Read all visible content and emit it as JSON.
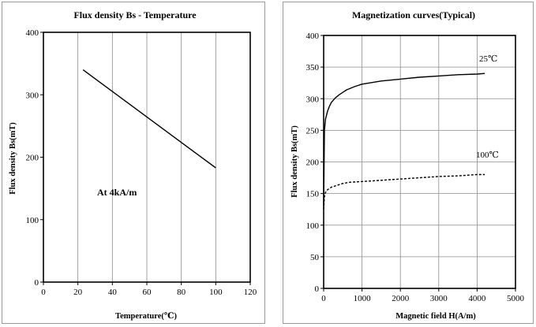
{
  "chart_data": [
    {
      "type": "line",
      "title": "Flux density Bs - Temperature",
      "xlabel": "Temperature(℃)",
      "ylabel": "Flux density Bs(mT)",
      "xlim": [
        0,
        120
      ],
      "ylim": [
        0,
        400
      ],
      "xticks": [
        0,
        20,
        40,
        60,
        80,
        100,
        120
      ],
      "yticks": [
        0,
        100,
        200,
        300,
        400
      ],
      "grid": "vertical",
      "annotation": "At 4kA/m",
      "series": [
        {
          "name": "Bs",
          "style": "solid",
          "x": [
            23,
            100
          ],
          "y": [
            340,
            183
          ]
        }
      ]
    },
    {
      "type": "line",
      "title": "Magnetization curves(Typical)",
      "xlabel": "Magnetic field H(A/m)",
      "ylabel": "Flux density Bs(mT)",
      "xlim": [
        0,
        5000
      ],
      "ylim": [
        0,
        400
      ],
      "xticks": [
        0,
        1000,
        2000,
        3000,
        4000,
        5000
      ],
      "yticks": [
        0,
        50,
        100,
        150,
        200,
        250,
        300,
        350,
        400
      ],
      "grid": "both",
      "series": [
        {
          "name": "25℃",
          "style": "solid",
          "x": [
            0,
            20,
            50,
            100,
            150,
            200,
            300,
            400,
            500,
            600,
            800,
            1000,
            1500,
            2000,
            2500,
            3000,
            3500,
            4000,
            4200
          ],
          "y": [
            130,
            250,
            268,
            280,
            288,
            294,
            301,
            306,
            310,
            314,
            319,
            323,
            328,
            331,
            334,
            336,
            338,
            339,
            340
          ]
        },
        {
          "name": "100℃",
          "style": "dashed",
          "x": [
            0,
            20,
            50,
            100,
            200,
            300,
            500,
            700,
            1000,
            1500,
            2000,
            2500,
            3000,
            3500,
            4000,
            4200
          ],
          "y": [
            125,
            145,
            152,
            156,
            160,
            162,
            166,
            168,
            169,
            171,
            173,
            175,
            177,
            178,
            180,
            180
          ]
        }
      ]
    }
  ]
}
